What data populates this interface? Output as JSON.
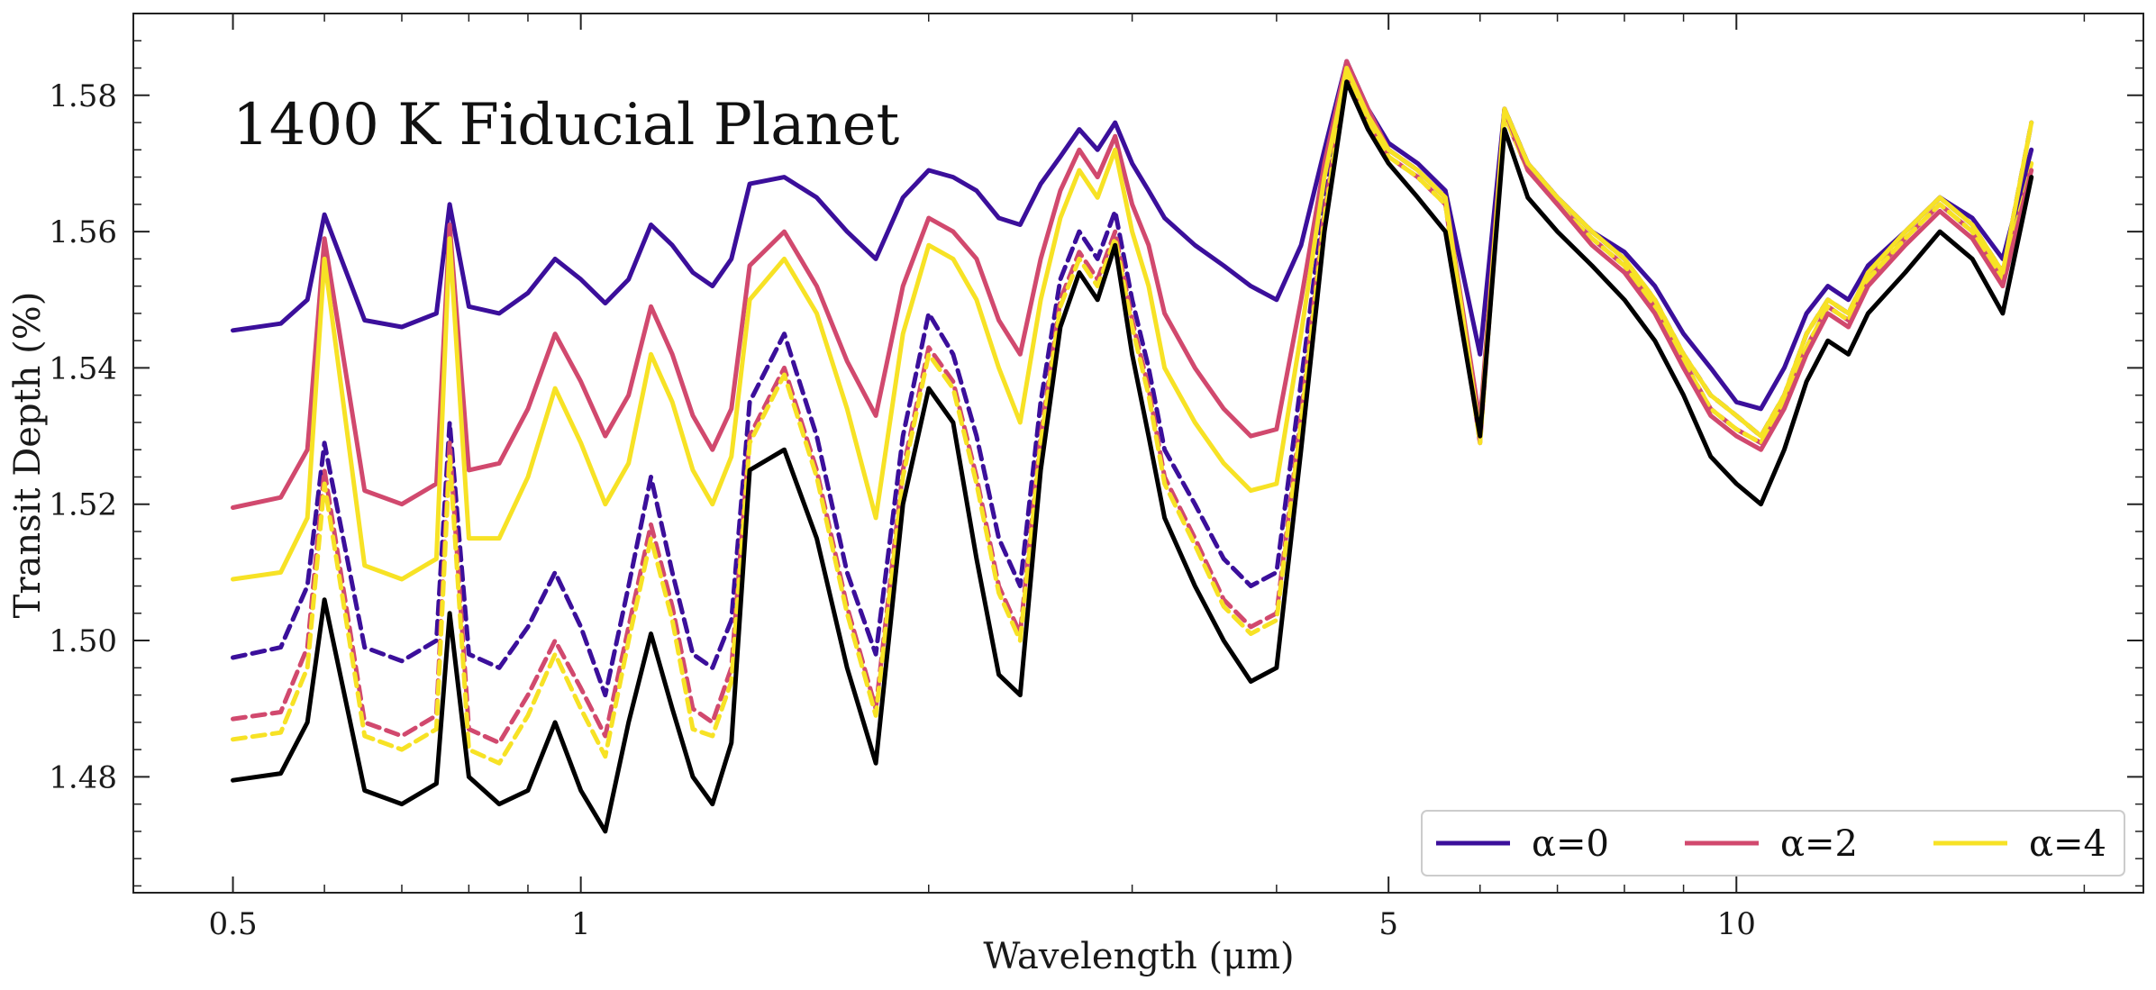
{
  "chart_data": {
    "type": "line",
    "annotation": "1400 K Fiducial Planet",
    "xlabel": "Wavelength (μm)",
    "ylabel": "Transit Depth (%)",
    "xscale": "log",
    "xlim": [
      0.41,
      22.5
    ],
    "ylim": [
      1.463,
      1.592
    ],
    "xticks": [
      0.5,
      1,
      5,
      10
    ],
    "xtick_labels": [
      "0.5",
      "1",
      "5",
      "10"
    ],
    "yticks": [
      1.48,
      1.5,
      1.52,
      1.54,
      1.56,
      1.58
    ],
    "ytick_labels": [
      "1.48",
      "1.50",
      "1.52",
      "1.54",
      "1.56",
      "1.58"
    ],
    "grid": false,
    "legend": {
      "location": "lower right",
      "entries": [
        {
          "label": "α=0",
          "color": "#3b0f9b"
        },
        {
          "label": "α=2",
          "color": "#d1496e"
        },
        {
          "label": "α=4",
          "color": "#f7e225"
        }
      ]
    },
    "colors": {
      "alpha0": "#3b0f9b",
      "alpha2": "#d1496e",
      "alpha4": "#f7e225",
      "reference": "#000000"
    },
    "x": [
      0.5,
      0.55,
      0.58,
      0.6,
      0.65,
      0.7,
      0.75,
      0.77,
      0.8,
      0.85,
      0.9,
      0.95,
      1.0,
      1.05,
      1.1,
      1.15,
      1.2,
      1.25,
      1.3,
      1.35,
      1.4,
      1.5,
      1.6,
      1.7,
      1.8,
      1.9,
      2.0,
      2.1,
      2.2,
      2.3,
      2.4,
      2.5,
      2.6,
      2.7,
      2.8,
      2.9,
      3.0,
      3.1,
      3.2,
      3.4,
      3.6,
      3.8,
      4.0,
      4.2,
      4.4,
      4.6,
      4.8,
      5.0,
      5.3,
      5.6,
      6.0,
      6.3,
      6.6,
      7.0,
      7.5,
      8.0,
      8.5,
      9.0,
      9.5,
      10.0,
      10.5,
      11.0,
      11.5,
      12.0,
      12.5,
      13.0,
      14.0,
      15.0,
      16.0,
      17.0,
      18.0
    ],
    "series": [
      {
        "name": "α=0",
        "style": "solid",
        "color": "#3b0f9b",
        "values": [
          1.5455,
          1.5465,
          1.55,
          1.5625,
          1.547,
          1.546,
          1.548,
          1.564,
          1.549,
          1.548,
          1.551,
          1.556,
          1.553,
          1.5495,
          1.553,
          1.561,
          1.558,
          1.554,
          1.552,
          1.556,
          1.567,
          1.568,
          1.565,
          1.56,
          1.556,
          1.565,
          1.569,
          1.568,
          1.566,
          1.562,
          1.561,
          1.567,
          1.571,
          1.575,
          1.572,
          1.576,
          1.57,
          1.566,
          1.562,
          1.558,
          1.555,
          1.552,
          1.55,
          1.558,
          1.572,
          1.585,
          1.578,
          1.573,
          1.57,
          1.566,
          1.542,
          1.578,
          1.57,
          1.565,
          1.56,
          1.557,
          1.552,
          1.545,
          1.54,
          1.535,
          1.534,
          1.54,
          1.548,
          1.552,
          1.55,
          1.555,
          1.56,
          1.565,
          1.562,
          1.556,
          1.572
        ]
      },
      {
        "name": "α=2",
        "style": "solid",
        "color": "#d1496e",
        "values": [
          1.5195,
          1.521,
          1.528,
          1.559,
          1.522,
          1.52,
          1.523,
          1.561,
          1.525,
          1.526,
          1.534,
          1.545,
          1.538,
          1.53,
          1.536,
          1.549,
          1.542,
          1.533,
          1.528,
          1.534,
          1.555,
          1.56,
          1.552,
          1.541,
          1.533,
          1.552,
          1.562,
          1.56,
          1.556,
          1.547,
          1.542,
          1.556,
          1.566,
          1.572,
          1.568,
          1.574,
          1.564,
          1.558,
          1.548,
          1.54,
          1.534,
          1.53,
          1.531,
          1.55,
          1.57,
          1.585,
          1.578,
          1.572,
          1.569,
          1.565,
          1.532,
          1.578,
          1.569,
          1.564,
          1.558,
          1.554,
          1.548,
          1.54,
          1.533,
          1.53,
          1.528,
          1.534,
          1.542,
          1.548,
          1.546,
          1.552,
          1.558,
          1.563,
          1.559,
          1.552,
          1.569
        ]
      },
      {
        "name": "α=4",
        "style": "solid",
        "color": "#f7e225",
        "values": [
          1.509,
          1.51,
          1.518,
          1.556,
          1.511,
          1.509,
          1.512,
          1.559,
          1.515,
          1.515,
          1.524,
          1.537,
          1.529,
          1.52,
          1.526,
          1.542,
          1.535,
          1.525,
          1.52,
          1.527,
          1.55,
          1.556,
          1.548,
          1.534,
          1.518,
          1.545,
          1.558,
          1.556,
          1.55,
          1.54,
          1.532,
          1.55,
          1.562,
          1.569,
          1.565,
          1.572,
          1.56,
          1.552,
          1.54,
          1.532,
          1.526,
          1.522,
          1.523,
          1.545,
          1.568,
          1.584,
          1.577,
          1.572,
          1.569,
          1.565,
          1.53,
          1.578,
          1.57,
          1.565,
          1.56,
          1.556,
          1.55,
          1.542,
          1.536,
          1.533,
          1.53,
          1.536,
          1.545,
          1.55,
          1.548,
          1.554,
          1.56,
          1.565,
          1.561,
          1.554,
          1.576
        ]
      },
      {
        "name": "",
        "style": "dashed",
        "color": "#3b0f9b",
        "values": [
          1.4975,
          1.499,
          1.508,
          1.529,
          1.499,
          1.497,
          1.5,
          1.532,
          1.498,
          1.496,
          1.502,
          1.51,
          1.502,
          1.492,
          1.508,
          1.524,
          1.51,
          1.498,
          1.496,
          1.503,
          1.535,
          1.545,
          1.53,
          1.51,
          1.498,
          1.53,
          1.548,
          1.542,
          1.53,
          1.515,
          1.508,
          1.535,
          1.553,
          1.56,
          1.556,
          1.563,
          1.55,
          1.54,
          1.528,
          1.52,
          1.512,
          1.508,
          1.51,
          1.538,
          1.565,
          1.584,
          1.577,
          1.572,
          1.569,
          1.565,
          1.53,
          1.578,
          1.57,
          1.565,
          1.56,
          1.556,
          1.55,
          1.542,
          1.536,
          1.533,
          1.53,
          1.536,
          1.545,
          1.55,
          1.548,
          1.554,
          1.56,
          1.565,
          1.561,
          1.554,
          1.576
        ]
      },
      {
        "name": "",
        "style": "dashed",
        "color": "#d1496e",
        "values": [
          1.4885,
          1.4895,
          1.499,
          1.525,
          1.488,
          1.486,
          1.489,
          1.529,
          1.487,
          1.485,
          1.492,
          1.5,
          1.493,
          1.486,
          1.502,
          1.517,
          1.505,
          1.49,
          1.488,
          1.496,
          1.53,
          1.54,
          1.525,
          1.505,
          1.49,
          1.525,
          1.543,
          1.538,
          1.524,
          1.508,
          1.501,
          1.53,
          1.55,
          1.557,
          1.553,
          1.56,
          1.547,
          1.537,
          1.524,
          1.515,
          1.506,
          1.502,
          1.504,
          1.533,
          1.563,
          1.583,
          1.576,
          1.571,
          1.568,
          1.564,
          1.529,
          1.577,
          1.569,
          1.564,
          1.559,
          1.555,
          1.549,
          1.541,
          1.534,
          1.531,
          1.529,
          1.535,
          1.543,
          1.549,
          1.547,
          1.553,
          1.559,
          1.564,
          1.56,
          1.553,
          1.57
        ]
      },
      {
        "name": "",
        "style": "dashed",
        "color": "#f7e225",
        "values": [
          1.4855,
          1.4865,
          1.496,
          1.523,
          1.486,
          1.484,
          1.487,
          1.527,
          1.484,
          1.482,
          1.489,
          1.498,
          1.49,
          1.483,
          1.5,
          1.515,
          1.503,
          1.487,
          1.486,
          1.494,
          1.529,
          1.539,
          1.524,
          1.504,
          1.489,
          1.524,
          1.542,
          1.537,
          1.523,
          1.507,
          1.5,
          1.529,
          1.549,
          1.556,
          1.552,
          1.559,
          1.546,
          1.536,
          1.523,
          1.514,
          1.505,
          1.501,
          1.503,
          1.532,
          1.562,
          1.583,
          1.576,
          1.571,
          1.568,
          1.564,
          1.529,
          1.577,
          1.569,
          1.564,
          1.559,
          1.555,
          1.549,
          1.541,
          1.534,
          1.531,
          1.529,
          1.535,
          1.543,
          1.549,
          1.547,
          1.553,
          1.559,
          1.564,
          1.56,
          1.553,
          1.57
        ]
      },
      {
        "name": "",
        "style": "solid",
        "color": "#000000",
        "values": [
          1.4795,
          1.4805,
          1.488,
          1.506,
          1.478,
          1.476,
          1.479,
          1.504,
          1.48,
          1.476,
          1.478,
          1.488,
          1.478,
          1.472,
          1.488,
          1.501,
          1.49,
          1.48,
          1.476,
          1.485,
          1.525,
          1.528,
          1.515,
          1.496,
          1.482,
          1.52,
          1.537,
          1.532,
          1.512,
          1.495,
          1.492,
          1.525,
          1.546,
          1.554,
          1.55,
          1.558,
          1.542,
          1.53,
          1.518,
          1.508,
          1.5,
          1.494,
          1.496,
          1.528,
          1.56,
          1.582,
          1.575,
          1.57,
          1.565,
          1.56,
          1.53,
          1.575,
          1.565,
          1.56,
          1.555,
          1.55,
          1.544,
          1.536,
          1.527,
          1.523,
          1.52,
          1.528,
          1.538,
          1.544,
          1.542,
          1.548,
          1.554,
          1.56,
          1.556,
          1.548,
          1.568
        ]
      }
    ]
  }
}
